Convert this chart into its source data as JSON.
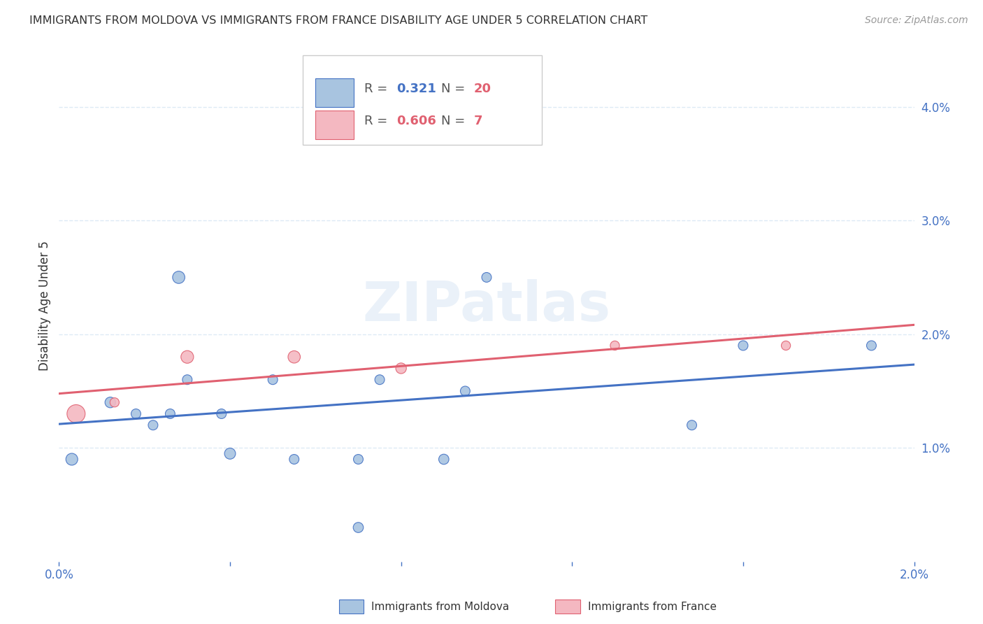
{
  "title": "IMMIGRANTS FROM MOLDOVA VS IMMIGRANTS FROM FRANCE DISABILITY AGE UNDER 5 CORRELATION CHART",
  "source": "Source: ZipAtlas.com",
  "ylabel": "Disability Age Under 5",
  "watermark": "ZIPatlas",
  "xlim": [
    0.0,
    0.02
  ],
  "ylim": [
    0.0,
    0.045
  ],
  "xticks": [
    0.0,
    0.004,
    0.008,
    0.012,
    0.016,
    0.02
  ],
  "xticklabels": [
    "0.0%",
    "",
    "",
    "",
    "",
    "2.0%"
  ],
  "yticks_right": [
    0.01,
    0.02,
    0.03,
    0.04
  ],
  "yticklabels_right": [
    "1.0%",
    "2.0%",
    "3.0%",
    "4.0%"
  ],
  "moldova_color": "#a8c4e0",
  "moldova_color_dark": "#4472c4",
  "france_color": "#f4b8c1",
  "france_color_dark": "#e06070",
  "moldova_r": "0.321",
  "moldova_n": "20",
  "france_r": "0.606",
  "france_n": "7",
  "moldova_x": [
    0.0003,
    0.0012,
    0.0018,
    0.0022,
    0.0026,
    0.0028,
    0.003,
    0.0038,
    0.004,
    0.005,
    0.0055,
    0.007,
    0.007,
    0.0075,
    0.009,
    0.0095,
    0.01,
    0.0148,
    0.016,
    0.019
  ],
  "moldova_y": [
    0.009,
    0.014,
    0.013,
    0.012,
    0.013,
    0.025,
    0.016,
    0.013,
    0.0095,
    0.016,
    0.009,
    0.009,
    0.003,
    0.016,
    0.009,
    0.015,
    0.025,
    0.012,
    0.019,
    0.019
  ],
  "france_x": [
    0.0004,
    0.0013,
    0.003,
    0.0055,
    0.008,
    0.013,
    0.017
  ],
  "france_y": [
    0.013,
    0.014,
    0.018,
    0.018,
    0.017,
    0.019,
    0.019
  ],
  "moldova_sizes": [
    150,
    120,
    100,
    100,
    100,
    160,
    100,
    100,
    130,
    100,
    100,
    100,
    110,
    100,
    110,
    100,
    100,
    100,
    100,
    100
  ],
  "france_sizes": [
    350,
    90,
    170,
    160,
    120,
    90,
    90
  ],
  "grid_color": "#ddeaf5",
  "background_color": "#ffffff",
  "title_color": "#333333",
  "axis_color": "#4472c4",
  "legend_r_color": "#4472c4",
  "legend_n_color": "#e06070",
  "watermark_color": "#ccddf0",
  "watermark_alpha": 0.4
}
